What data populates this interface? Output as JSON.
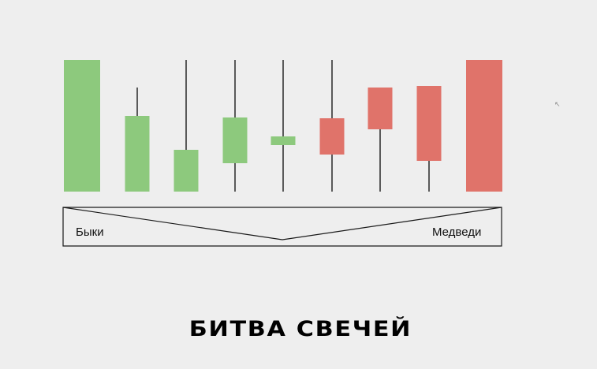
{
  "diagram": {
    "title": "БИТВА СВЕЧЕЙ",
    "left_label": "Быки",
    "right_label": "Медведи",
    "colors": {
      "bullish": "#8dc97d",
      "bearish": "#e0736a",
      "wick": "#1a1a1a",
      "outline": "#1a1a1a",
      "background": "#eeeeee"
    },
    "candles": [
      {
        "direction": "bullish"
      },
      {
        "direction": "bullish"
      },
      {
        "direction": "bullish"
      },
      {
        "direction": "bullish"
      },
      {
        "direction": "bullish"
      },
      {
        "direction": "bearish"
      },
      {
        "direction": "bearish"
      },
      {
        "direction": "bearish"
      },
      {
        "direction": "bearish"
      }
    ],
    "cursor_icon": "mouse-pointer-icon"
  }
}
